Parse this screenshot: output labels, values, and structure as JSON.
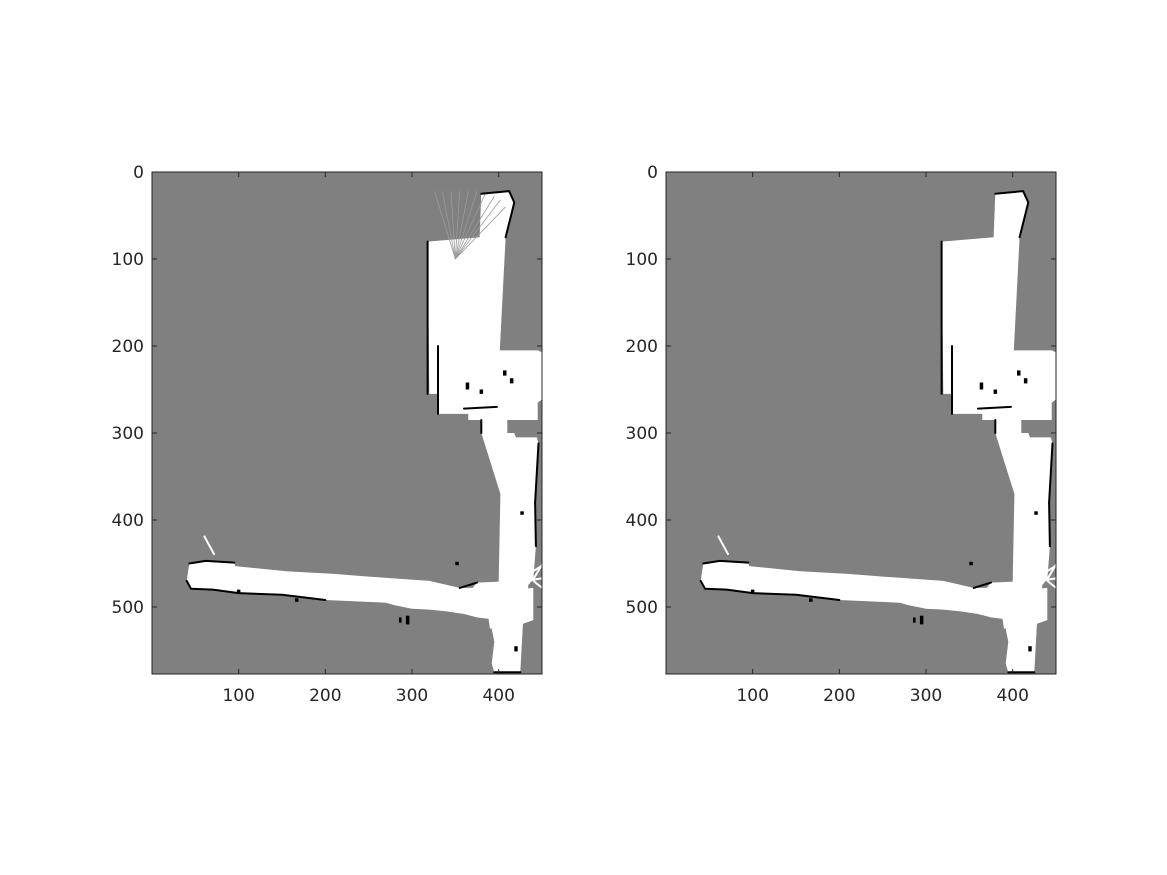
{
  "figure": {
    "colors": {
      "background": "#ffffff",
      "unknown": "#808080",
      "free": "#ffffff",
      "occupied": "#000000",
      "axis": "#262626"
    },
    "panels": [
      {
        "id": "left",
        "xlim": [
          0,
          450
        ],
        "ylim": [
          0,
          577
        ],
        "x_direction": "normal",
        "y_direction": "reversed",
        "x_ticks": [
          100,
          200,
          300,
          400
        ],
        "x_tick_labels": [
          "100",
          "200",
          "300",
          "400"
        ],
        "y_ticks": [
          0,
          100,
          200,
          300,
          400,
          500
        ],
        "y_tick_labels": [
          "0",
          "100",
          "200",
          "300",
          "400",
          "500"
        ],
        "has_ray_artifacts": true
      },
      {
        "id": "right",
        "xlim": [
          0,
          450
        ],
        "ylim": [
          0,
          577
        ],
        "x_direction": "normal",
        "y_direction": "reversed",
        "x_ticks": [
          100,
          200,
          300,
          400
        ],
        "x_tick_labels": [
          "100",
          "200",
          "300",
          "400"
        ],
        "y_ticks": [
          0,
          100,
          200,
          300,
          400,
          500
        ],
        "y_tick_labels": [
          "0",
          "100",
          "200",
          "300",
          "400",
          "500"
        ],
        "has_ray_artifacts": false
      }
    ],
    "map": {
      "free_polygons": [
        [
          [
            380,
            25
          ],
          [
            412,
            22
          ],
          [
            418,
            35
          ],
          [
            408,
            75
          ],
          [
            398,
            270
          ],
          [
            360,
            272
          ],
          [
            358,
            255
          ],
          [
            320,
            255
          ],
          [
            318,
            80
          ],
          [
            378,
            75
          ]
        ],
        [
          [
            330,
            200
          ],
          [
            355,
            200
          ],
          [
            357,
            205
          ],
          [
            445,
            205
          ],
          [
            452,
            208
          ],
          [
            452,
            260
          ],
          [
            445,
            265
          ],
          [
            445,
            285
          ],
          [
            410,
            285
          ],
          [
            410,
            300
          ],
          [
            380,
            300
          ],
          [
            380,
            285
          ],
          [
            365,
            285
          ],
          [
            365,
            278
          ],
          [
            330,
            278
          ]
        ],
        [
          [
            340,
            255
          ],
          [
            380,
            258
          ],
          [
            382,
            270
          ],
          [
            340,
            272
          ]
        ],
        [
          [
            380,
            300
          ],
          [
            418,
            300
          ],
          [
            420,
            305
          ],
          [
            444,
            305
          ],
          [
            446,
            312
          ],
          [
            442,
            380
          ],
          [
            443,
            430
          ],
          [
            440,
            468
          ],
          [
            434,
            475
          ],
          [
            436,
            510
          ],
          [
            428,
            520
          ],
          [
            425,
            575
          ],
          [
            395,
            575
          ],
          [
            392,
            565
          ],
          [
            395,
            540
          ],
          [
            392,
            525
          ],
          [
            398,
            520
          ],
          [
            398,
            505
          ],
          [
            400,
            470
          ],
          [
            402,
            370
          ]
        ],
        [
          [
            43,
            450
          ],
          [
            62,
            447
          ],
          [
            95,
            449
          ],
          [
            96,
            453
          ],
          [
            155,
            459
          ],
          [
            210,
            462
          ],
          [
            250,
            465
          ],
          [
            320,
            470
          ],
          [
            355,
            478
          ],
          [
            370,
            478
          ],
          [
            375,
            472
          ],
          [
            420,
            470
          ],
          [
            422,
            480
          ],
          [
            440,
            478
          ],
          [
            440,
            515
          ],
          [
            420,
            522
          ],
          [
            415,
            517
          ],
          [
            375,
            512
          ],
          [
            360,
            508
          ],
          [
            340,
            505
          ],
          [
            320,
            503
          ],
          [
            300,
            502
          ],
          [
            280,
            498
          ],
          [
            270,
            495
          ],
          [
            200,
            492
          ],
          [
            150,
            486
          ],
          [
            100,
            484
          ],
          [
            70,
            480
          ],
          [
            45,
            479
          ],
          [
            40,
            470
          ]
        ],
        [
          [
            375,
            472
          ],
          [
            395,
            472
          ],
          [
            395,
            478
          ],
          [
            375,
            478
          ]
        ],
        [
          [
            388,
            512
          ],
          [
            403,
            510
          ],
          [
            405,
            522
          ],
          [
            390,
            525
          ]
        ]
      ],
      "occupied_polylines": [
        [
          [
            380,
            25
          ],
          [
            412,
            22
          ],
          [
            418,
            35
          ],
          [
            408,
            75
          ]
        ],
        [
          [
            318,
            80
          ],
          [
            318,
            255
          ]
        ],
        [
          [
            43,
            450
          ],
          [
            62,
            447
          ],
          [
            95,
            449
          ]
        ],
        [
          [
            40,
            470
          ],
          [
            45,
            479
          ],
          [
            70,
            480
          ],
          [
            100,
            484
          ],
          [
            150,
            486
          ],
          [
            200,
            492
          ]
        ],
        [
          [
            330,
            200
          ],
          [
            330,
            278
          ]
        ],
        [
          [
            380,
            300
          ],
          [
            380,
            285
          ]
        ],
        [
          [
            395,
            575
          ],
          [
            425,
            575
          ]
        ],
        [
          [
            398,
            270
          ],
          [
            360,
            272
          ]
        ],
        [
          [
            442,
            380
          ],
          [
            443,
            430
          ]
        ],
        [
          [
            355,
            478
          ],
          [
            375,
            472
          ]
        ],
        [
          [
            446,
            312
          ],
          [
            442,
            380
          ]
        ]
      ],
      "occupied_blobs": [
        [
          [
            362,
            242
          ],
          [
            366,
            242
          ],
          [
            366,
            250
          ],
          [
            362,
            250
          ]
        ],
        [
          [
            378,
            250
          ],
          [
            382,
            250
          ],
          [
            382,
            255
          ],
          [
            378,
            255
          ]
        ],
        [
          [
            413,
            237
          ],
          [
            417,
            237
          ],
          [
            417,
            243
          ],
          [
            413,
            243
          ]
        ],
        [
          [
            405,
            228
          ],
          [
            409,
            228
          ],
          [
            409,
            234
          ],
          [
            405,
            234
          ]
        ],
        [
          [
            98,
            480
          ],
          [
            102,
            480
          ],
          [
            102,
            484
          ],
          [
            98,
            484
          ]
        ],
        [
          [
            165,
            490
          ],
          [
            169,
            490
          ],
          [
            169,
            494
          ],
          [
            165,
            494
          ]
        ],
        [
          [
            425,
            390
          ],
          [
            429,
            390
          ],
          [
            429,
            394
          ],
          [
            425,
            394
          ]
        ],
        [
          [
            293,
            510
          ],
          [
            297,
            510
          ],
          [
            297,
            520
          ],
          [
            293,
            520
          ]
        ],
        [
          [
            285,
            512
          ],
          [
            288,
            512
          ],
          [
            288,
            518
          ],
          [
            285,
            518
          ]
        ],
        [
          [
            418,
            545
          ],
          [
            422,
            545
          ],
          [
            422,
            551
          ],
          [
            418,
            551
          ]
        ],
        [
          [
            350,
            448
          ],
          [
            354,
            448
          ],
          [
            354,
            452
          ],
          [
            350,
            452
          ]
        ]
      ],
      "white_spurs": [
        [
          [
            60,
            418
          ],
          [
            72,
            440
          ]
        ],
        [
          [
            440,
            470
          ],
          [
            478,
            500
          ]
        ],
        [
          [
            440,
            468
          ],
          [
            458,
            438
          ]
        ],
        [
          [
            438,
            460
          ],
          [
            470,
            440
          ]
        ],
        [
          [
            432,
            470
          ],
          [
            462,
            465
          ]
        ]
      ],
      "ray_origin": [
        350,
        100
      ],
      "ray_targets": [
        [
          326,
          22
        ],
        [
          335,
          22
        ],
        [
          345,
          22
        ],
        [
          355,
          22
        ],
        [
          365,
          22
        ],
        [
          375,
          22
        ],
        [
          385,
          24
        ],
        [
          395,
          28
        ],
        [
          402,
          32
        ],
        [
          408,
          40
        ]
      ]
    }
  }
}
